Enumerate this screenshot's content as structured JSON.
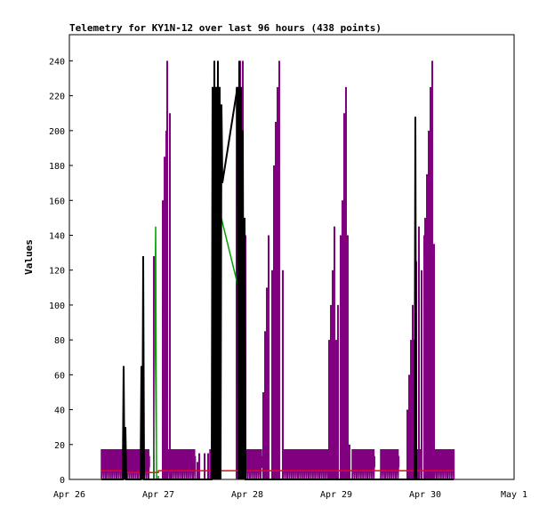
{
  "chart_data": {
    "type": "line",
    "title": "Telemetry for KY1N-12 over last 96 hours (438 points)",
    "xlabel": "",
    "ylabel": "Values",
    "x_unit": "days",
    "xlim": [
      0,
      5
    ],
    "ylim": [
      0,
      255
    ],
    "x_ticks": [
      {
        "value": 0,
        "label": "Apr 26"
      },
      {
        "value": 1,
        "label": "Apr 27"
      },
      {
        "value": 2,
        "label": "Apr 28"
      },
      {
        "value": 3,
        "label": "Apr 29"
      },
      {
        "value": 4,
        "label": "Apr 30"
      },
      {
        "value": 5,
        "label": "May 1"
      }
    ],
    "y_ticks": [
      0,
      20,
      40,
      60,
      80,
      100,
      120,
      140,
      160,
      180,
      200,
      220,
      240
    ],
    "grid": false,
    "legend": "none",
    "series": [
      {
        "color": "#ff0000",
        "points": [
          [
            0.36,
            5
          ],
          [
            0.62,
            5
          ],
          [
            0.62,
            4
          ],
          [
            1.0,
            4
          ],
          [
            1.0,
            5
          ],
          [
            4.32,
            5
          ]
        ]
      },
      {
        "color": "#00a000",
        "points": [
          [
            0.85,
            0
          ],
          [
            0.95,
            0
          ],
          [
            0.97,
            145
          ],
          [
            0.98,
            0
          ],
          [
            1.62,
            0
          ],
          [
            1.64,
            225
          ],
          [
            1.66,
            160
          ],
          [
            1.9,
            110
          ],
          [
            1.9,
            50
          ],
          [
            1.92,
            0
          ],
          [
            2.05,
            0
          ]
        ]
      },
      {
        "color": "#000000",
        "points": [
          [
            0.36,
            0
          ],
          [
            0.6,
            0
          ],
          [
            0.61,
            65
          ],
          [
            0.62,
            0
          ],
          [
            0.63,
            30
          ],
          [
            0.64,
            0
          ],
          [
            0.8,
            0
          ],
          [
            0.81,
            65
          ],
          [
            0.82,
            0
          ],
          [
            0.83,
            128
          ],
          [
            0.84,
            0
          ],
          [
            1.6,
            0
          ],
          [
            1.61,
            225
          ],
          [
            1.62,
            0
          ],
          [
            1.63,
            240
          ],
          [
            1.64,
            0
          ],
          [
            1.65,
            225
          ],
          [
            1.66,
            0
          ],
          [
            1.67,
            240
          ],
          [
            1.68,
            0
          ],
          [
            1.69,
            225
          ],
          [
            1.7,
            0
          ],
          [
            1.71,
            215
          ],
          [
            1.72,
            170
          ],
          [
            1.89,
            225
          ],
          [
            1.9,
            0
          ],
          [
            1.91,
            240
          ],
          [
            1.92,
            0
          ],
          [
            1.93,
            225
          ],
          [
            1.94,
            0
          ],
          [
            1.95,
            200
          ],
          [
            1.96,
            0
          ],
          [
            1.97,
            150
          ],
          [
            1.98,
            0
          ],
          [
            3.7,
            0
          ],
          [
            3.88,
            0
          ],
          [
            3.89,
            208
          ],
          [
            3.9,
            0
          ],
          [
            4.32,
            0
          ]
        ]
      },
      {
        "color": "#800080",
        "spans": [
          [
            0.36,
            0.9
          ],
          [
            1.1,
            1.42
          ],
          [
            1.58,
            1.62
          ],
          [
            1.98,
            2.17
          ],
          [
            2.4,
            2.97
          ],
          [
            3.18,
            3.43
          ],
          [
            3.5,
            3.7
          ],
          [
            3.91,
            3.95
          ],
          [
            4.08,
            4.32
          ]
        ],
        "spikes": [
          [
            0.95,
            128
          ],
          [
            1.05,
            160
          ],
          [
            1.07,
            185
          ],
          [
            1.09,
            200
          ],
          [
            1.1,
            240
          ],
          [
            1.13,
            210
          ],
          [
            1.44,
            10
          ],
          [
            1.46,
            15
          ],
          [
            1.52,
            15
          ],
          [
            1.56,
            15
          ],
          [
            1.88,
            225
          ],
          [
            1.92,
            240
          ],
          [
            1.95,
            240
          ],
          [
            1.98,
            140
          ],
          [
            2.18,
            50
          ],
          [
            2.2,
            85
          ],
          [
            2.22,
            110
          ],
          [
            2.24,
            140
          ],
          [
            2.28,
            120
          ],
          [
            2.3,
            180
          ],
          [
            2.32,
            205
          ],
          [
            2.34,
            225
          ],
          [
            2.36,
            240
          ],
          [
            2.4,
            120
          ],
          [
            2.92,
            80
          ],
          [
            2.94,
            100
          ],
          [
            2.96,
            120
          ],
          [
            2.98,
            145
          ],
          [
            3.0,
            80
          ],
          [
            3.02,
            100
          ],
          [
            3.05,
            140
          ],
          [
            3.07,
            160
          ],
          [
            3.09,
            210
          ],
          [
            3.11,
            225
          ],
          [
            3.13,
            140
          ],
          [
            3.15,
            20
          ],
          [
            3.8,
            40
          ],
          [
            3.82,
            60
          ],
          [
            3.84,
            80
          ],
          [
            3.86,
            100
          ],
          [
            3.88,
            80
          ],
          [
            3.9,
            125
          ],
          [
            3.93,
            145
          ],
          [
            3.96,
            120
          ],
          [
            3.99,
            140
          ],
          [
            4.0,
            150
          ],
          [
            4.02,
            175
          ],
          [
            4.04,
            200
          ],
          [
            4.06,
            225
          ],
          [
            4.08,
            240
          ],
          [
            4.1,
            135
          ]
        ]
      }
    ]
  }
}
